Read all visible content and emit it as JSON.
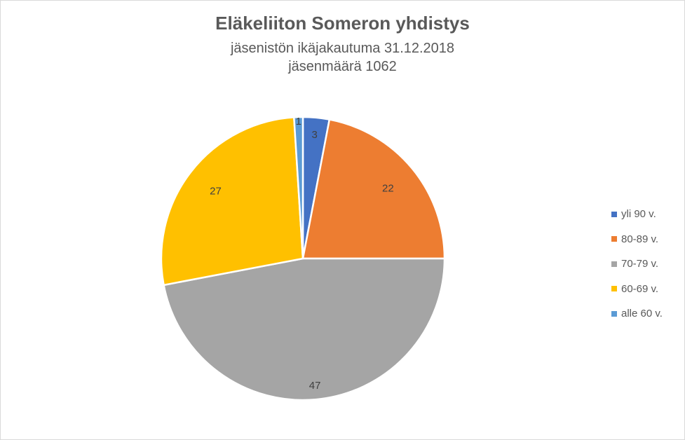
{
  "chart_data": {
    "type": "pie",
    "title": "Eläkeliiton Someron yhdistys",
    "subtitle_lines": [
      "jäsenistön ikäjakautuma 31.12.2018",
      "jäsenmäärä 1062"
    ],
    "categories": [
      "yli 90 v.",
      "80-89 v.",
      "70-79 v.",
      "60-69 v.",
      "alle 60 v."
    ],
    "values": [
      3,
      22,
      47,
      27,
      1
    ],
    "data_labels": [
      "3",
      "22",
      "47",
      "27",
      "1"
    ],
    "colors": [
      "#4472C4",
      "#ED7D31",
      "#A5A5A5",
      "#FFC000",
      "#5B9BD5"
    ],
    "legend_position": "right",
    "start_angle": "12 o'clock",
    "direction": "clockwise"
  }
}
